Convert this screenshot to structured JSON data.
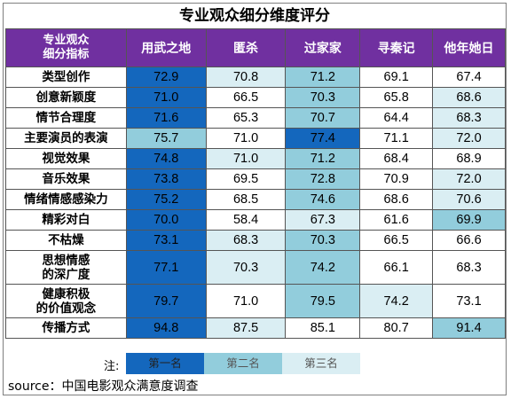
{
  "chart_data": {
    "type": "table",
    "title": "专业观众细分维度评分",
    "corner_header": "专业观众细分指标",
    "columns": [
      "用武之地",
      "匿杀",
      "过家家",
      "寻秦记",
      "他年她日"
    ],
    "rows": [
      {
        "label": "类型创作",
        "values": [
          72.9,
          70.8,
          71.2,
          69.1,
          67.4
        ],
        "ranks": [
          1,
          3,
          2,
          0,
          0
        ]
      },
      {
        "label": "创意新颖度",
        "values": [
          71.0,
          66.5,
          70.3,
          65.8,
          68.6
        ],
        "ranks": [
          1,
          0,
          2,
          0,
          3
        ]
      },
      {
        "label": "情节合理度",
        "values": [
          71.6,
          65.3,
          70.7,
          64.4,
          68.3
        ],
        "ranks": [
          1,
          0,
          2,
          0,
          3
        ]
      },
      {
        "label": "主要演员的表演",
        "values": [
          75.7,
          71.0,
          77.4,
          71.1,
          72.0
        ],
        "ranks": [
          2,
          0,
          1,
          0,
          3
        ]
      },
      {
        "label": "视觉效果",
        "values": [
          74.8,
          71.0,
          71.2,
          68.4,
          68.9
        ],
        "ranks": [
          1,
          3,
          2,
          0,
          0
        ]
      },
      {
        "label": "音乐效果",
        "values": [
          73.8,
          69.5,
          72.8,
          70.9,
          72.0
        ],
        "ranks": [
          1,
          0,
          2,
          0,
          3
        ]
      },
      {
        "label": "情绪情感感染力",
        "values": [
          75.2,
          68.5,
          74.6,
          68.6,
          70.6
        ],
        "ranks": [
          1,
          0,
          2,
          0,
          3
        ]
      },
      {
        "label": "精彩对白",
        "values": [
          70.0,
          58.4,
          67.3,
          61.6,
          69.9
        ],
        "ranks": [
          1,
          0,
          3,
          0,
          2
        ]
      },
      {
        "label": "不枯燥",
        "values": [
          73.1,
          68.3,
          70.3,
          66.5,
          66.6
        ],
        "ranks": [
          1,
          3,
          2,
          0,
          0
        ]
      },
      {
        "label": "思想情感的深广度",
        "values": [
          77.1,
          70.3,
          74.2,
          66.1,
          68.3
        ],
        "ranks": [
          1,
          3,
          2,
          0,
          0
        ]
      },
      {
        "label": "健康积极的价值观念",
        "values": [
          79.7,
          71.0,
          79.5,
          74.2,
          73.1
        ],
        "ranks": [
          1,
          0,
          2,
          3,
          0
        ]
      },
      {
        "label": "传播方式",
        "values": [
          94.8,
          87.5,
          85.1,
          80.7,
          91.4
        ],
        "ranks": [
          1,
          3,
          0,
          0,
          2
        ]
      }
    ],
    "rank_colors": {
      "1": "#1467bd",
      "2": "#92cddc",
      "3": "#daeef3"
    }
  },
  "legend": {
    "note": "注:",
    "items": [
      "第一名",
      "第二名",
      "第三名"
    ]
  },
  "source": "source：中国电影观众满意度调查"
}
